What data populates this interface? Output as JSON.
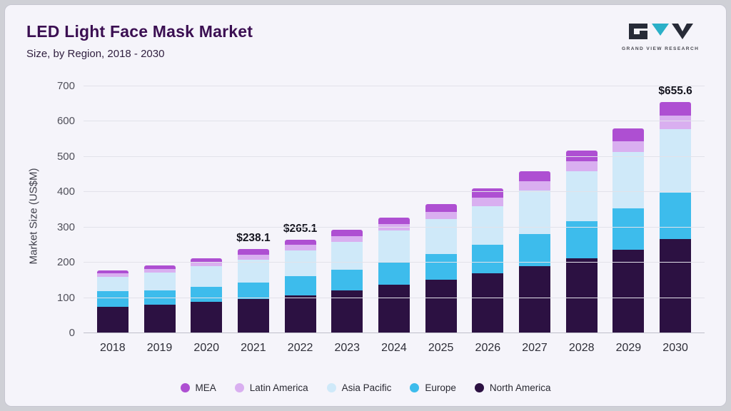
{
  "header": {
    "title": "LED Light Face Mask Market",
    "subtitle": "Size, by Region, 2018 - 2030",
    "logo_text": "GRAND VIEW RESEARCH"
  },
  "chart_data": {
    "type": "bar",
    "stacked": true,
    "title": "LED Light Face Mask Market Size, by Region, 2018 - 2030",
    "ylabel": "Market Size (US$M)",
    "ylim": [
      0,
      700
    ],
    "yticks": [
      0,
      100,
      200,
      300,
      400,
      500,
      600,
      700
    ],
    "grid": true,
    "legend_position": "bottom",
    "categories": [
      "2018",
      "2019",
      "2020",
      "2021",
      "2022",
      "2023",
      "2024",
      "2025",
      "2026",
      "2027",
      "2028",
      "2029",
      "2030"
    ],
    "series": [
      {
        "name": "North America",
        "color": "#2c1142",
        "values": [
          75,
          80,
          90,
          97,
          108,
          122,
          137,
          152,
          170,
          190,
          212,
          237,
          267
        ]
      },
      {
        "name": "Europe",
        "color": "#3dbcec",
        "values": [
          45,
          42,
          42,
          47,
          54,
          58,
          64,
          73,
          80,
          92,
          105,
          118,
          132
        ]
      },
      {
        "name": "Asia Pacific",
        "color": "#cfe9f9",
        "values": [
          40,
          50,
          58,
          64,
          73,
          80,
          90,
          98,
          110,
          122,
          142,
          158,
          180
        ]
      },
      {
        "name": "Latin America",
        "color": "#d9aff0",
        "values": [
          10,
          11,
          11,
          15,
          15,
          16,
          18,
          21,
          24,
          26,
          28,
          32,
          38
        ]
      },
      {
        "name": "MEA",
        "color": "#ae4fd2",
        "values": [
          8,
          9,
          11,
          15.1,
          15.1,
          17,
          19,
          23,
          27,
          30,
          31,
          36,
          38.6
        ]
      }
    ],
    "annotations": [
      {
        "category": "2021",
        "text": "$238.1"
      },
      {
        "category": "2022",
        "text": "$265.1"
      },
      {
        "category": "2030",
        "text": "$655.6"
      }
    ],
    "legend": [
      "MEA",
      "Latin America",
      "Asia Pacific",
      "Europe",
      "North America"
    ]
  }
}
